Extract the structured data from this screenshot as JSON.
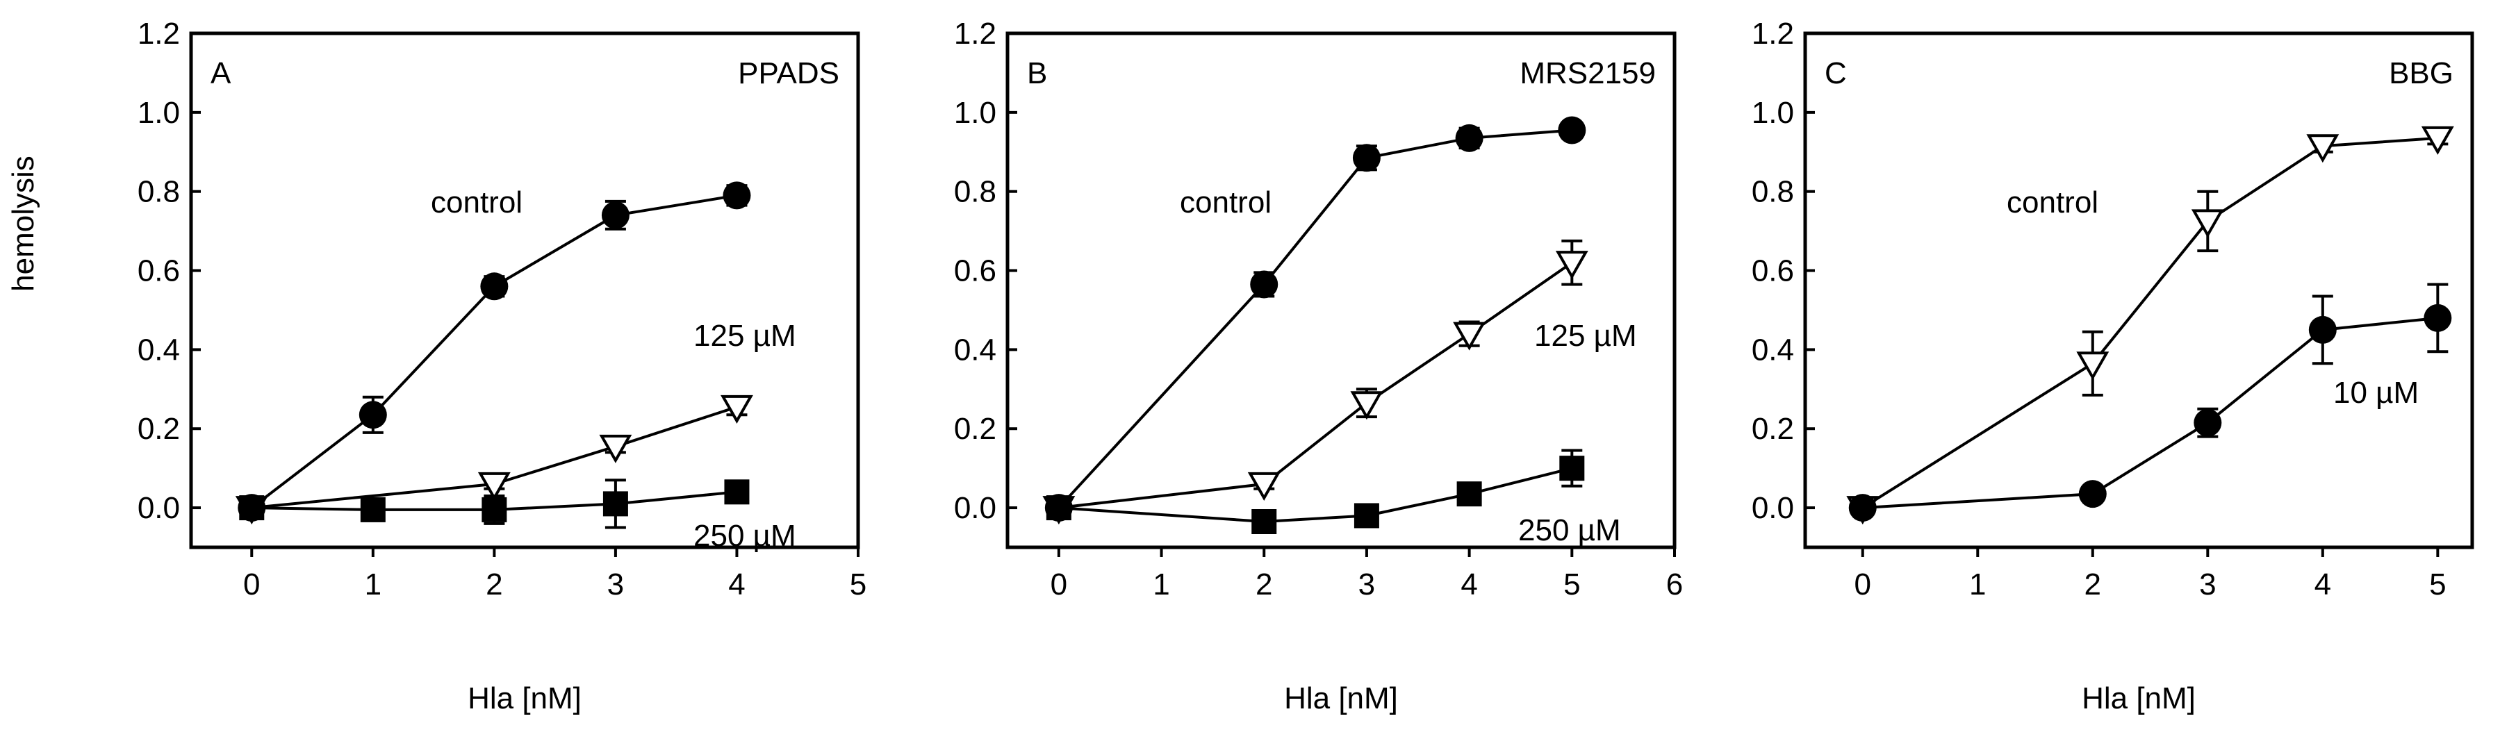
{
  "figure": {
    "ylabel": "hemolysis"
  },
  "chart_data": [
    {
      "type": "scatter",
      "panel_letter": "A",
      "title": "PPADS",
      "xlabel": "Hla [nM]",
      "ylabel": "hemolysis",
      "xlim": [
        -0.5,
        5
      ],
      "ylim": [
        -0.1,
        1.2
      ],
      "xticks": [
        0,
        1,
        2,
        3,
        4,
        5
      ],
      "yticks": [
        0.0,
        0.2,
        0.4,
        0.6,
        0.8,
        1.0,
        1.2
      ],
      "grid": false,
      "series": [
        {
          "name": "control",
          "marker": "filled-circle",
          "x": [
            0,
            1,
            2,
            3,
            4
          ],
          "y": [
            0.0,
            0.235,
            0.56,
            0.74,
            0.79
          ],
          "err": [
            0.015,
            0.045,
            0.025,
            0.035,
            0.025
          ]
        },
        {
          "name": "125 µM",
          "marker": "open-triangle-down",
          "x": [
            0,
            2,
            3,
            4
          ],
          "y": [
            0.0,
            0.06,
            0.155,
            0.255
          ],
          "err": [
            0.01,
            0.012,
            0.015,
            0.02
          ]
        },
        {
          "name": "250 µM",
          "marker": "filled-square",
          "x": [
            0,
            1,
            2,
            3,
            4
          ],
          "y": [
            0.0,
            -0.005,
            -0.005,
            0.01,
            0.04
          ],
          "err": [
            0.01,
            0.02,
            0.035,
            0.06,
            0.025
          ]
        }
      ],
      "annotations": [
        "control",
        "125 µM",
        "250 µM"
      ]
    },
    {
      "type": "scatter",
      "panel_letter": "B",
      "title": "MRS2159",
      "xlabel": "Hla [nM]",
      "ylabel": "",
      "xlim": [
        -0.5,
        6
      ],
      "ylim": [
        -0.1,
        1.2
      ],
      "xticks": [
        0,
        1,
        2,
        3,
        4,
        5,
        6
      ],
      "yticks": [
        0.0,
        0.2,
        0.4,
        0.6,
        0.8,
        1.0,
        1.2
      ],
      "grid": false,
      "series": [
        {
          "name": "control",
          "marker": "filled-circle",
          "x": [
            0,
            2,
            3,
            4,
            5
          ],
          "y": [
            0.0,
            0.565,
            0.885,
            0.935,
            0.955
          ],
          "err": [
            0.012,
            0.03,
            0.03,
            0.025,
            0.02
          ]
        },
        {
          "name": "125 µM",
          "marker": "open-triangle-down",
          "x": [
            0,
            2,
            3,
            4,
            5
          ],
          "y": [
            0.0,
            0.06,
            0.265,
            0.44,
            0.62
          ],
          "err": [
            0.01,
            0.012,
            0.035,
            0.03,
            0.055
          ]
        },
        {
          "name": "250 µM",
          "marker": "filled-square",
          "x": [
            0,
            2,
            3,
            4,
            5
          ],
          "y": [
            0.0,
            -0.035,
            -0.02,
            0.035,
            0.1
          ],
          "err": [
            0.01,
            0.015,
            0.018,
            0.02,
            0.045
          ]
        }
      ],
      "annotations": [
        "control",
        "125 µM",
        "250 µM"
      ]
    },
    {
      "type": "scatter",
      "panel_letter": "C",
      "title": "BBG",
      "xlabel": "Hla [nM]",
      "ylabel": "",
      "xlim": [
        -0.5,
        5.3
      ],
      "ylim": [
        -0.1,
        1.2
      ],
      "xticks": [
        0,
        1,
        2,
        3,
        4,
        5
      ],
      "yticks": [
        0.0,
        0.2,
        0.4,
        0.6,
        0.8,
        1.0,
        1.2
      ],
      "grid": false,
      "series": [
        {
          "name": "control",
          "marker": "open-triangle-down",
          "x": [
            0,
            2,
            3,
            4,
            5
          ],
          "y": [
            0.0,
            0.365,
            0.725,
            0.915,
            0.935
          ],
          "err": [
            0.012,
            0.08,
            0.075,
            0.015,
            0.015
          ]
        },
        {
          "name": "10 µM",
          "marker": "filled-circle",
          "x": [
            0,
            2,
            3,
            4,
            5
          ],
          "y": [
            0.0,
            0.035,
            0.215,
            0.45,
            0.48
          ],
          "err": [
            0.01,
            0.012,
            0.035,
            0.085,
            0.085
          ]
        }
      ],
      "annotations": [
        "control",
        "10 µM"
      ]
    }
  ]
}
